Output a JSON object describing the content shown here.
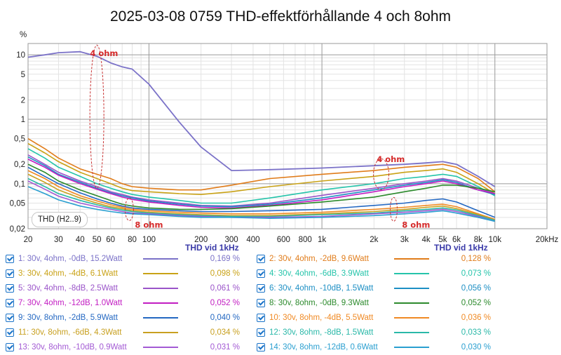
{
  "chart_data": {
    "type": "line",
    "title": "2025-03-08 0759 THD-effektförhållande 4 och 8ohm",
    "ylabel": "%",
    "x_scale": "log",
    "y_scale": "log",
    "xlim": [
      20,
      20000
    ],
    "ylim": [
      0.02,
      15
    ],
    "grid": true,
    "x_ticks": [
      {
        "v": 20,
        "label": "20"
      },
      {
        "v": 30,
        "label": "30"
      },
      {
        "v": 40,
        "label": "40"
      },
      {
        "v": 50,
        "label": "50"
      },
      {
        "v": 60,
        "label": "60"
      },
      {
        "v": 80,
        "label": "80"
      },
      {
        "v": 100,
        "label": "100"
      },
      {
        "v": 200,
        "label": "200"
      },
      {
        "v": 300,
        "label": "300"
      },
      {
        "v": 400,
        "label": "400"
      },
      {
        "v": 600,
        "label": "600"
      },
      {
        "v": 800,
        "label": "800"
      },
      {
        "v": 1000,
        "label": "1k"
      },
      {
        "v": 2000,
        "label": "2k"
      },
      {
        "v": 3000,
        "label": "3k"
      },
      {
        "v": 4000,
        "label": "4k"
      },
      {
        "v": 5000,
        "label": "5k"
      },
      {
        "v": 6000,
        "label": "6k"
      },
      {
        "v": 8000,
        "label": "8k"
      },
      {
        "v": 10000,
        "label": "10k"
      },
      {
        "v": 20000,
        "label": "20kHz"
      }
    ],
    "y_ticks": [
      {
        "v": 10,
        "label": "10"
      },
      {
        "v": 5,
        "label": "5"
      },
      {
        "v": 2,
        "label": "2"
      },
      {
        "v": 1,
        "label": "1"
      },
      {
        "v": 0.5,
        "label": "0,5"
      },
      {
        "v": 0.2,
        "label": "0,2"
      },
      {
        "v": 0.1,
        "label": "0,1"
      },
      {
        "v": 0.05,
        "label": "0,05"
      },
      {
        "v": 0.02,
        "label": "0,02"
      }
    ],
    "x_points": [
      20,
      25,
      30,
      40,
      50,
      60,
      70,
      80,
      100,
      150,
      200,
      300,
      500,
      1000,
      2000,
      3000,
      4000,
      5000,
      6000,
      8000,
      10000
    ],
    "series": [
      {
        "name": "1: 30v, 4ohm, -0dB, 15.2Watt",
        "color": "#7b72c8",
        "thd_1k": "0,169 %",
        "values": [
          9.2,
          10.0,
          10.8,
          11.2,
          9.5,
          7.5,
          6.5,
          6.0,
          3.5,
          0.9,
          0.37,
          0.16,
          0.165,
          0.175,
          0.19,
          0.2,
          0.21,
          0.22,
          0.2,
          0.13,
          0.09
        ]
      },
      {
        "name": "2: 30v, 4ohm, -2dB, 9.6Watt",
        "color": "#e07c1a",
        "thd_1k": "0,128 %",
        "values": [
          0.5,
          0.35,
          0.25,
          0.17,
          0.14,
          0.12,
          0.1,
          0.09,
          0.085,
          0.08,
          0.08,
          0.095,
          0.12,
          0.14,
          0.16,
          0.18,
          0.19,
          0.2,
          0.18,
          0.12,
          0.075
        ]
      },
      {
        "name": "3: 30v, 4ohm, -4dB, 6.1Watt",
        "color": "#c9a216",
        "thd_1k": "0,098 %",
        "values": [
          0.42,
          0.3,
          0.22,
          0.15,
          0.12,
          0.1,
          0.085,
          0.078,
          0.075,
          0.07,
          0.068,
          0.075,
          0.09,
          0.11,
          0.13,
          0.15,
          0.16,
          0.17,
          0.15,
          0.1,
          0.07
        ]
      },
      {
        "name": "4: 30v, 4ohm, -6dB, 3.9Watt",
        "color": "#25c4aa",
        "thd_1k": "0,073 %",
        "values": [
          0.35,
          0.25,
          0.18,
          0.13,
          0.1,
          0.085,
          0.075,
          0.068,
          0.062,
          0.055,
          0.05,
          0.05,
          0.06,
          0.08,
          0.1,
          0.12,
          0.13,
          0.14,
          0.13,
          0.09,
          0.065
        ]
      },
      {
        "name": "5: 30v, 4ohm, -8dB, 2.5Watt",
        "color": "#9a54c9",
        "thd_1k": "0,061 %",
        "values": [
          0.28,
          0.2,
          0.15,
          0.11,
          0.09,
          0.075,
          0.068,
          0.062,
          0.056,
          0.05,
          0.046,
          0.045,
          0.05,
          0.066,
          0.085,
          0.1,
          0.11,
          0.12,
          0.11,
          0.085,
          0.07
        ]
      },
      {
        "name": "6: 30v, 4ohm, -10dB, 1.5Watt",
        "color": "#1d8fc4",
        "thd_1k": "0,056 %",
        "values": [
          0.26,
          0.19,
          0.14,
          0.105,
          0.085,
          0.072,
          0.065,
          0.06,
          0.054,
          0.048,
          0.045,
          0.044,
          0.048,
          0.06,
          0.08,
          0.095,
          0.105,
          0.115,
          0.105,
          0.08,
          0.068
        ]
      },
      {
        "name": "7: 30v, 4ohm, -12dB, 1.0Watt",
        "color": "#c21dc2",
        "thd_1k": "0,052 %",
        "values": [
          0.24,
          0.18,
          0.135,
          0.1,
          0.082,
          0.07,
          0.062,
          0.057,
          0.052,
          0.046,
          0.043,
          0.042,
          0.046,
          0.056,
          0.075,
          0.09,
          0.1,
          0.11,
          0.1,
          0.08,
          0.07
        ]
      },
      {
        "name": "8: 30v, 8ohm, -0dB, 9.3Watt",
        "color": "#2c8a2c",
        "thd_1k": "0,052 %",
        "values": [
          0.2,
          0.15,
          0.11,
          0.08,
          0.065,
          0.055,
          0.048,
          0.045,
          0.042,
          0.04,
          0.04,
          0.041,
          0.045,
          0.052,
          0.062,
          0.075,
          0.085,
          0.095,
          0.095,
          0.085,
          0.075
        ]
      },
      {
        "name": "9: 30v, 8ohm, -2dB, 5.9Watt",
        "color": "#2468c2",
        "thd_1k": "0,040 %",
        "values": [
          0.18,
          0.13,
          0.1,
          0.072,
          0.058,
          0.05,
          0.045,
          0.042,
          0.04,
          0.038,
          0.037,
          0.037,
          0.038,
          0.04,
          0.046,
          0.05,
          0.055,
          0.058,
          0.052,
          0.038,
          0.03
        ]
      },
      {
        "name": "10: 30v, 8ohm, -4dB, 5.5Watt",
        "color": "#f08a24",
        "thd_1k": "0,036 %",
        "values": [
          0.16,
          0.12,
          0.09,
          0.065,
          0.054,
          0.047,
          0.043,
          0.04,
          0.038,
          0.036,
          0.035,
          0.034,
          0.034,
          0.036,
          0.04,
          0.043,
          0.046,
          0.048,
          0.044,
          0.034,
          0.028
        ]
      },
      {
        "name": "11: 30v, 8ohm, -6dB, 4.3Watt",
        "color": "#c8a020",
        "thd_1k": "0,034 %",
        "values": [
          0.14,
          0.105,
          0.08,
          0.06,
          0.05,
          0.044,
          0.041,
          0.038,
          0.036,
          0.034,
          0.033,
          0.032,
          0.032,
          0.034,
          0.037,
          0.04,
          0.043,
          0.045,
          0.041,
          0.033,
          0.027
        ]
      },
      {
        "name": "12: 30v, 8ohm, -8dB, 1.5Watt",
        "color": "#2ab8a8",
        "thd_1k": "0,033 %",
        "values": [
          0.12,
          0.09,
          0.07,
          0.055,
          0.047,
          0.042,
          0.039,
          0.037,
          0.035,
          0.033,
          0.032,
          0.031,
          0.031,
          0.033,
          0.035,
          0.038,
          0.04,
          0.042,
          0.039,
          0.032,
          0.027
        ]
      },
      {
        "name": "13: 30v, 8ohm, -10dB, 0.9Watt",
        "color": "#a35ad4",
        "thd_1k": "0,031 %",
        "values": [
          0.11,
          0.082,
          0.064,
          0.05,
          0.044,
          0.04,
          0.037,
          0.035,
          0.034,
          0.032,
          0.031,
          0.03,
          0.03,
          0.031,
          0.034,
          0.036,
          0.038,
          0.04,
          0.037,
          0.031,
          0.026
        ]
      },
      {
        "name": "14: 30v, 8ohm, -12dB, 0.6Watt",
        "color": "#2a9fd0",
        "thd_1k": "0,030 %",
        "values": [
          0.09,
          0.07,
          0.056,
          0.045,
          0.04,
          0.037,
          0.035,
          0.034,
          0.033,
          0.031,
          0.03,
          0.03,
          0.029,
          0.03,
          0.032,
          0.034,
          0.036,
          0.038,
          0.035,
          0.03,
          0.026
        ]
      }
    ],
    "annotations": [
      {
        "text": "4 ohm",
        "x": 55,
        "y": 10.5
      },
      {
        "text": "8 ohm",
        "x": 100,
        "y": 0.023
      },
      {
        "text": "4 ohm",
        "x": 2500,
        "y": 0.24
      },
      {
        "text": "8 ohm",
        "x": 3500,
        "y": 0.023
      }
    ],
    "thd_header": "THD vid 1kHz",
    "legend_box_label": "THD (H2..9)"
  }
}
